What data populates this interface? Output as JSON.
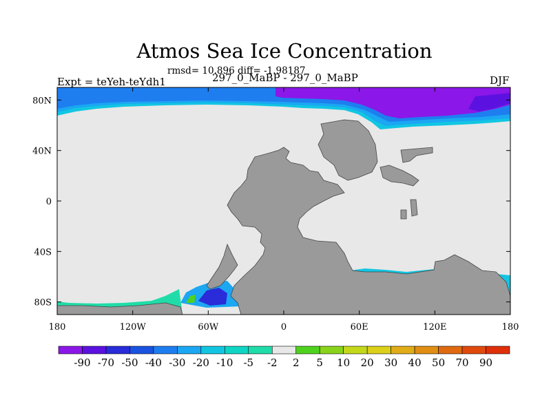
{
  "title": "Atmos Sea Ice Concentration",
  "stats_line": "rmsd= 10.896 diff= -1.98187",
  "left_label": "Expt = teYeh-teYdh1",
  "center_label": "297_0_MaBP - 297_0_MaBP",
  "right_label": "DJF",
  "chart_data": {
    "type": "heatmap",
    "title": "Atmos Sea Ice Concentration",
    "subtitle": "297_0_MaBP - 297_0_MaBP",
    "xlabel": "",
    "ylabel": "",
    "xlim": [
      -180,
      180
    ],
    "ylim": [
      -90,
      90
    ],
    "x_ticks": [
      {
        "value": -180,
        "label": "180"
      },
      {
        "value": -120,
        "label": "120W"
      },
      {
        "value": -60,
        "label": "60W"
      },
      {
        "value": 0,
        "label": "0"
      },
      {
        "value": 60,
        "label": "60E"
      },
      {
        "value": 120,
        "label": "120E"
      },
      {
        "value": 180,
        "label": "180"
      }
    ],
    "y_ticks": [
      {
        "value": 80,
        "label": "80N"
      },
      {
        "value": 40,
        "label": "40N"
      },
      {
        "value": 0,
        "label": "0"
      },
      {
        "value": -40,
        "label": "40S"
      },
      {
        "value": -80,
        "label": "80S"
      }
    ],
    "colorbar": {
      "levels": [
        -90,
        -70,
        -50,
        -40,
        -30,
        -20,
        -10,
        -5,
        -2,
        2,
        5,
        10,
        20,
        30,
        40,
        50,
        70,
        90
      ],
      "labels": [
        "-90",
        "-70",
        "-50",
        "-40",
        "-30",
        "-20",
        "-10",
        "-5",
        "-2",
        "2",
        "5",
        "10",
        "20",
        "30",
        "40",
        "50",
        "70",
        "90"
      ],
      "colors": [
        "#8b17e8",
        "#5b12e0",
        "#2a2bd9",
        "#1a53e0",
        "#1e7ef0",
        "#1ba7f2",
        "#12c6e2",
        "#0fd6c4",
        "#20dca8",
        "#e8e8e8",
        "#4fd21e",
        "#89d41a",
        "#c4d81a",
        "#dcd01a",
        "#e0ac18",
        "#e08e14",
        "#e06a10",
        "#e04a0c",
        "#e0300a"
      ]
    },
    "land_color": "#9a9a9a",
    "zero_color": "#e8e8e8",
    "features": [
      {
        "region": "Arctic Ocean north of 80N",
        "value_range": [
          -90,
          -30
        ]
      },
      {
        "region": "Arctic margin 70N-80N",
        "value_range": [
          -30,
          -5
        ]
      },
      {
        "region": "Weddell Sea / Antarctic Peninsula",
        "value_range": [
          -50,
          10
        ]
      },
      {
        "region": "Southern Ocean margin",
        "value_range": [
          -10,
          5
        ]
      }
    ]
  }
}
